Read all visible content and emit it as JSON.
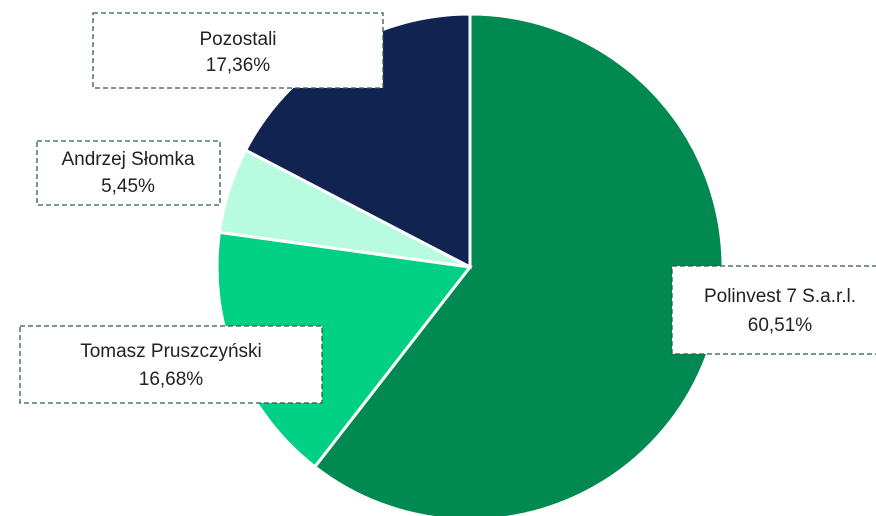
{
  "chart_data": {
    "type": "pie",
    "categories": [
      "Polinvest 7 S.a.r.l.",
      "Tomasz Pruszczyński",
      "Andrzej Słomka",
      "Pozostali"
    ],
    "values": [
      60.51,
      16.68,
      5.45,
      17.36
    ],
    "value_labels": [
      "60,51%",
      "16,68%",
      "5,45%",
      "17,36%"
    ],
    "colors": [
      "#008a52",
      "#00d084",
      "#b9fbe0",
      "#112350"
    ]
  }
}
